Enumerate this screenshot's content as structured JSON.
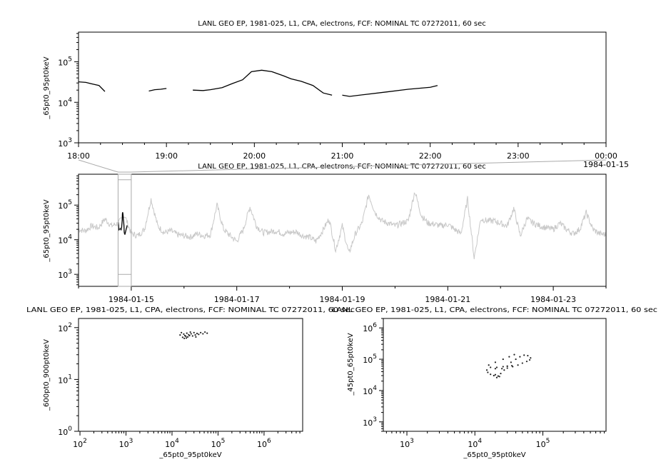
{
  "chart_data": [
    {
      "type": "line",
      "title": "LANL GEO EP, 1981-025, L1, CPA, electrons, FCF: NOMINAL TC 07272011, 60 sec",
      "ylabel": "_65pt0_95pt0keV",
      "yscale": "log",
      "ylim": [
        1000,
        540000
      ],
      "y_ticks": [
        1000,
        10000,
        100000
      ],
      "xlim": [
        "1984-01-14T18:00",
        "1984-01-15T00:00"
      ],
      "x_ticks": [
        "18:00",
        "19:00",
        "20:00",
        "21:00",
        "22:00",
        "23:00",
        "00:00"
      ],
      "x_end_date_label": "1984-01-15",
      "line_color": "#000000",
      "segments": [
        [
          [
            "18:00",
            32000
          ],
          [
            "18:05",
            31000
          ],
          [
            "18:10",
            28000
          ],
          [
            "18:14",
            26000
          ],
          [
            "18:18",
            18500
          ]
        ],
        [
          [
            "18:48",
            19000
          ],
          [
            "18:52",
            20500
          ],
          [
            "18:56",
            21000
          ],
          [
            "19:00",
            22000
          ]
        ],
        [
          [
            "19:18",
            20000
          ],
          [
            "19:25",
            19500
          ],
          [
            "19:30",
            20500
          ],
          [
            "19:38",
            23000
          ],
          [
            "19:45",
            29000
          ],
          [
            "19:52",
            36000
          ],
          [
            "19:58",
            57000
          ],
          [
            "20:05",
            62000
          ],
          [
            "20:12",
            57000
          ],
          [
            "20:20",
            45000
          ],
          [
            "20:25",
            38000
          ],
          [
            "20:32",
            33000
          ],
          [
            "20:40",
            26000
          ],
          [
            "20:47",
            17000
          ],
          [
            "20:53",
            15000
          ]
        ],
        [
          [
            "21:00",
            15000
          ],
          [
            "21:05",
            14000
          ],
          [
            "21:15",
            15500
          ],
          [
            "21:30",
            18000
          ],
          [
            "21:45",
            21000
          ],
          [
            "22:00",
            23500
          ],
          [
            "22:05",
            26000
          ]
        ]
      ]
    },
    {
      "type": "line",
      "title": "LANL GEO EP, 1981-025, L1, CPA, electrons, FCF: NOMINAL TC 07272011, 60 sec",
      "ylabel": "_65pt0_95pt0keV",
      "yscale": "log",
      "ylim": [
        450,
        780000
      ],
      "y_ticks": [
        1000,
        10000,
        100000
      ],
      "xlim": [
        "1984-01-14",
        "1984-01-24"
      ],
      "x_ticks": [
        "1984-01-15",
        "1984-01-17",
        "1984-01-19",
        "1984-01-21",
        "1984-01-23"
      ],
      "context_color": "#c8c8c8",
      "highlight_color": "#000000",
      "highlight_range": [
        "1984-01-14T18:00",
        "1984-01-15T00:00"
      ],
      "hours": [
        0,
        3,
        6,
        9,
        12,
        15,
        18,
        21
      ],
      "days": [
        {
          "date": "1984-01-14",
          "values": [
            20000,
            18000,
            25000,
            22000,
            40000,
            25000,
            30000,
            50000
          ]
        },
        {
          "date": "1984-01-15",
          "values": [
            15000,
            13000,
            20000,
            150000,
            25000,
            16000,
            18000,
            14000
          ]
        },
        {
          "date": "1984-01-16",
          "values": [
            13000,
            12000,
            15000,
            13000,
            14000,
            100000,
            20000,
            13000
          ]
        },
        {
          "date": "1984-01-17",
          "values": [
            9000,
            20000,
            90000,
            25000,
            16000,
            17000,
            18000,
            15000
          ]
        },
        {
          "date": "1984-01-18",
          "values": [
            16000,
            17000,
            13000,
            12000,
            9000,
            18000,
            40000,
            5000
          ]
        },
        {
          "date": "1984-01-19",
          "values": [
            25000,
            4000,
            15000,
            30000,
            200000,
            60000,
            35000,
            30000
          ]
        },
        {
          "date": "1984-01-20",
          "values": [
            25000,
            30000,
            35000,
            250000,
            50000,
            30000,
            28000,
            25000
          ]
        },
        {
          "date": "1984-01-21",
          "values": [
            28000,
            20000,
            15000,
            150000,
            3000,
            40000,
            35000,
            35000
          ]
        },
        {
          "date": "1984-01-22",
          "values": [
            30000,
            25000,
            80000,
            13000,
            40000,
            30000,
            25000,
            22000
          ]
        },
        {
          "date": "1984-01-23",
          "values": [
            20000,
            30000,
            20000,
            15000,
            20000,
            60000,
            20000,
            15000
          ]
        },
        {
          "date": "1984-01-24",
          "values": [
            14000
          ]
        }
      ]
    },
    {
      "type": "scatter",
      "title": "LANL GEO EP, 1981-025, L1, CPA, electrons, FCF: NOMINAL TC 07272011, 60 sec",
      "xlabel": "_65pt0_95pt0keV",
      "ylabel": "_600pt0_900pt0keV",
      "xscale": "log",
      "yscale": "log",
      "xlim": [
        93,
        6900000
      ],
      "ylim": [
        1,
        150
      ],
      "x_ticks": [
        100,
        1000,
        10000,
        100000,
        1000000
      ],
      "y_ticks": [
        1,
        10,
        100
      ],
      "points": [
        [
          15000,
          72
        ],
        [
          16000,
          80
        ],
        [
          17000,
          65
        ],
        [
          18000,
          75
        ],
        [
          19000,
          70
        ],
        [
          20000,
          68
        ],
        [
          21000,
          78
        ],
        [
          22000,
          66
        ],
        [
          23000,
          73
        ],
        [
          24000,
          70
        ],
        [
          26000,
          76
        ],
        [
          28000,
          69
        ],
        [
          30000,
          80
        ],
        [
          32000,
          72
        ],
        [
          35000,
          77
        ],
        [
          38000,
          74
        ],
        [
          42000,
          80
        ],
        [
          47000,
          76
        ],
        [
          52000,
          82
        ],
        [
          58000,
          78
        ],
        [
          20500,
          63
        ],
        [
          25000,
          82
        ],
        [
          18500,
          62
        ],
        [
          33000,
          66
        ]
      ]
    },
    {
      "type": "scatter",
      "title": "LANL GEO EP, 1981-025, L1, CPA, electrons, FCF: NOMINAL TC 07272011, 60 sec",
      "xlabel": "_65pt0_95pt0keV",
      "ylabel": "_45pt0_65pt0keV",
      "xscale": "log",
      "yscale": "log",
      "xlim": [
        450,
        850000
      ],
      "ylim": [
        500,
        2000000
      ],
      "x_ticks": [
        1000,
        10000,
        100000
      ],
      "y_ticks": [
        1000,
        10000,
        100000,
        1000000
      ],
      "points": [
        [
          15000,
          45000
        ],
        [
          15500,
          38000
        ],
        [
          17000,
          33000
        ],
        [
          19000,
          30000
        ],
        [
          21000,
          26000
        ],
        [
          22000,
          29000
        ],
        [
          24000,
          35000
        ],
        [
          27000,
          45000
        ],
        [
          30000,
          60000
        ],
        [
          34000,
          80000
        ],
        [
          40000,
          100000
        ],
        [
          46000,
          120000
        ],
        [
          53000,
          135000
        ],
        [
          60000,
          130000
        ],
        [
          66000,
          110000
        ],
        [
          64000,
          95000
        ],
        [
          58000,
          85000
        ],
        [
          50000,
          75000
        ],
        [
          43000,
          65000
        ],
        [
          36000,
          58000
        ],
        [
          30000,
          52000
        ],
        [
          25000,
          50000
        ],
        [
          20000,
          50000
        ],
        [
          17000,
          55000
        ],
        [
          16000,
          65000
        ],
        [
          20000,
          80000
        ],
        [
          26000,
          100000
        ],
        [
          32000,
          120000
        ],
        [
          38000,
          140000
        ],
        [
          21000,
          55000
        ],
        [
          26000,
          58000
        ],
        [
          30000,
          60000
        ],
        [
          35000,
          62000
        ],
        [
          23000,
          28000
        ],
        [
          20000,
          32000
        ]
      ]
    }
  ]
}
